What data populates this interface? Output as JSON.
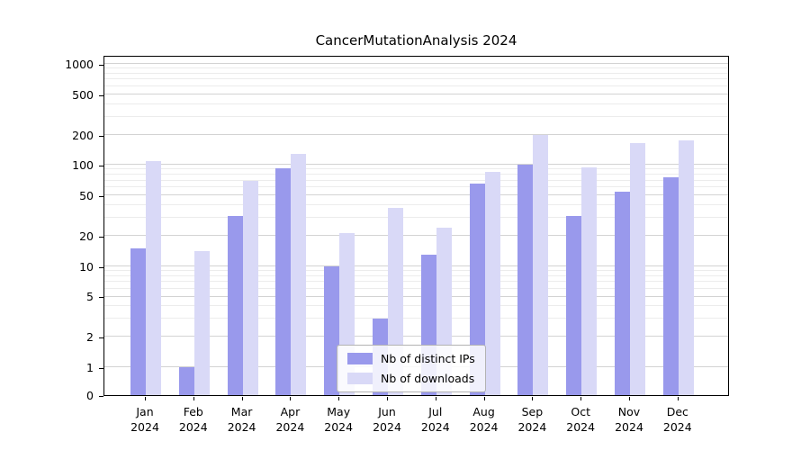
{
  "title": "CancerMutationAnalysis 2024",
  "chart_data": {
    "type": "bar",
    "scale": "log",
    "grid": true,
    "title": "CancerMutationAnalysis 2024",
    "xlabel": "",
    "ylabel": "",
    "year": "2024",
    "categories": [
      "Jan",
      "Feb",
      "Mar",
      "Apr",
      "May",
      "Jun",
      "Jul",
      "Aug",
      "Sep",
      "Oct",
      "Nov",
      "Dec"
    ],
    "series": [
      {
        "name": "Nb of distinct IPs",
        "color": "#9999ec",
        "values": [
          15,
          1,
          31,
          93,
          10,
          3,
          13,
          65,
          100,
          31,
          55,
          75
        ]
      },
      {
        "name": "Nb of downloads",
        "color": "#d9d9f7",
        "values": [
          110,
          14,
          70,
          130,
          21,
          38,
          24,
          85,
          200,
          95,
          165,
          175
        ]
      }
    ],
    "yticks": [
      0,
      1,
      2,
      5,
      10,
      20,
      50,
      100,
      200,
      500,
      1000
    ],
    "ylim": [
      0,
      1200
    ],
    "legend_position": "lower center inside"
  }
}
